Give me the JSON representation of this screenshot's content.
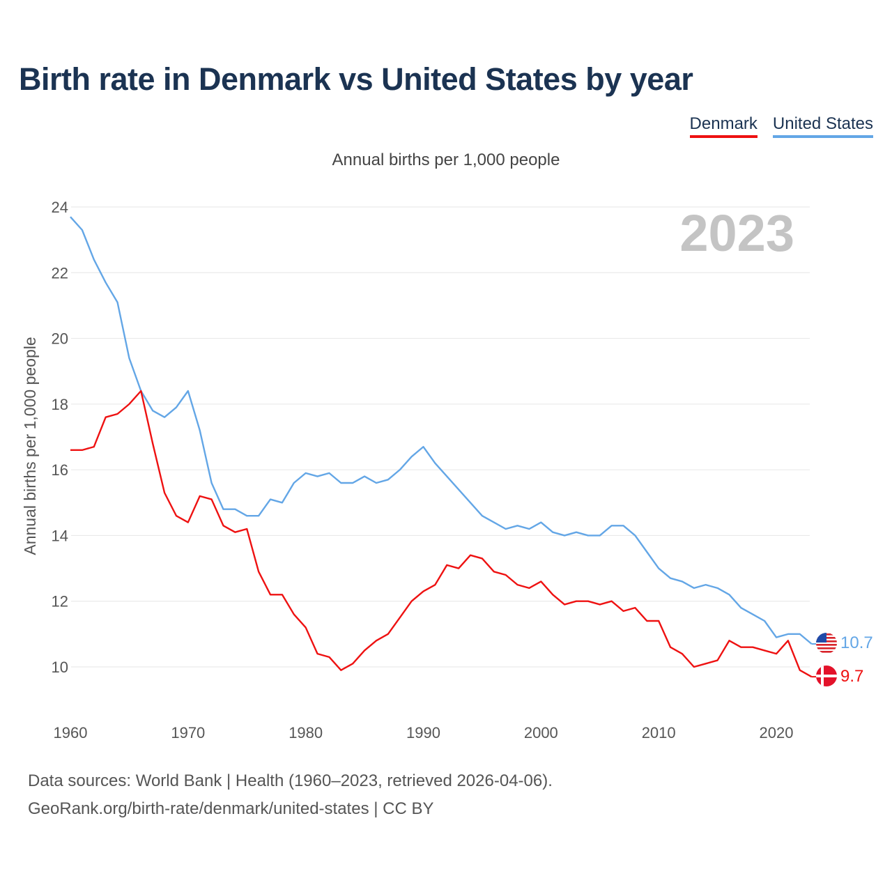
{
  "title": "Birth rate in Denmark vs United States by year",
  "legend": [
    {
      "label": "Denmark",
      "color": "#ee1111"
    },
    {
      "label": "United States",
      "color": "#63a6e6"
    }
  ],
  "subtitle": "Annual births per 1,000 people",
  "year_label": "2023",
  "footer": {
    "line1": "Data sources: World Bank | Health (1960–2023, retrieved 2026-04-06).",
    "line2": "GeoRank.org/birth-rate/denmark/united-states | CC BY"
  },
  "chart_data": {
    "type": "line",
    "title": "Birth rate in Denmark vs United States by year",
    "ylabel": "Annual births per 1,000 people",
    "xlabel": "",
    "xlim": [
      1960,
      2023
    ],
    "ylim": [
      9,
      24
    ],
    "x_ticks": [
      1960,
      1970,
      1980,
      1990,
      2000,
      2010,
      2020
    ],
    "y_ticks": [
      10,
      12,
      14,
      16,
      18,
      20,
      22,
      24
    ],
    "grid": true,
    "legend_position": "top-right",
    "x": [
      1960,
      1961,
      1962,
      1963,
      1964,
      1965,
      1966,
      1967,
      1968,
      1969,
      1970,
      1971,
      1972,
      1973,
      1974,
      1975,
      1976,
      1977,
      1978,
      1979,
      1980,
      1981,
      1982,
      1983,
      1984,
      1985,
      1986,
      1987,
      1988,
      1989,
      1990,
      1991,
      1992,
      1993,
      1994,
      1995,
      1996,
      1997,
      1998,
      1999,
      2000,
      2001,
      2002,
      2003,
      2004,
      2005,
      2006,
      2007,
      2008,
      2009,
      2010,
      2011,
      2012,
      2013,
      2014,
      2015,
      2016,
      2017,
      2018,
      2019,
      2020,
      2021,
      2022,
      2023
    ],
    "series": [
      {
        "name": "Denmark",
        "color": "#ee1111",
        "end_label": "9.7",
        "values": [
          16.6,
          16.6,
          16.7,
          17.6,
          17.7,
          18.0,
          18.4,
          16.8,
          15.3,
          14.6,
          14.4,
          15.2,
          15.1,
          14.3,
          14.1,
          14.2,
          12.9,
          12.2,
          12.2,
          11.6,
          11.2,
          10.4,
          10.3,
          9.9,
          10.1,
          10.5,
          10.8,
          11.0,
          11.5,
          12.0,
          12.3,
          12.5,
          13.1,
          13.0,
          13.4,
          13.3,
          12.9,
          12.8,
          12.5,
          12.4,
          12.6,
          12.2,
          11.9,
          12.0,
          12.0,
          11.9,
          12.0,
          11.7,
          11.8,
          11.4,
          11.4,
          10.6,
          10.4,
          10.0,
          10.1,
          10.2,
          10.8,
          10.6,
          10.6,
          10.5,
          10.4,
          10.8,
          9.9,
          9.7
        ]
      },
      {
        "name": "United States",
        "color": "#63a6e6",
        "end_label": "10.7",
        "values": [
          23.7,
          23.3,
          22.4,
          21.7,
          21.1,
          19.4,
          18.4,
          17.8,
          17.6,
          17.9,
          18.4,
          17.2,
          15.6,
          14.8,
          14.8,
          14.6,
          14.6,
          15.1,
          15.0,
          15.6,
          15.9,
          15.8,
          15.9,
          15.6,
          15.6,
          15.8,
          15.6,
          15.7,
          16.0,
          16.4,
          16.7,
          16.2,
          15.8,
          15.4,
          15.0,
          14.6,
          14.4,
          14.2,
          14.3,
          14.2,
          14.4,
          14.1,
          14.0,
          14.1,
          14.0,
          14.0,
          14.3,
          14.3,
          14.0,
          13.5,
          13.0,
          12.7,
          12.6,
          12.4,
          12.5,
          12.4,
          12.2,
          11.8,
          11.6,
          11.4,
          10.9,
          11.0,
          11.0,
          10.7
        ]
      }
    ]
  }
}
